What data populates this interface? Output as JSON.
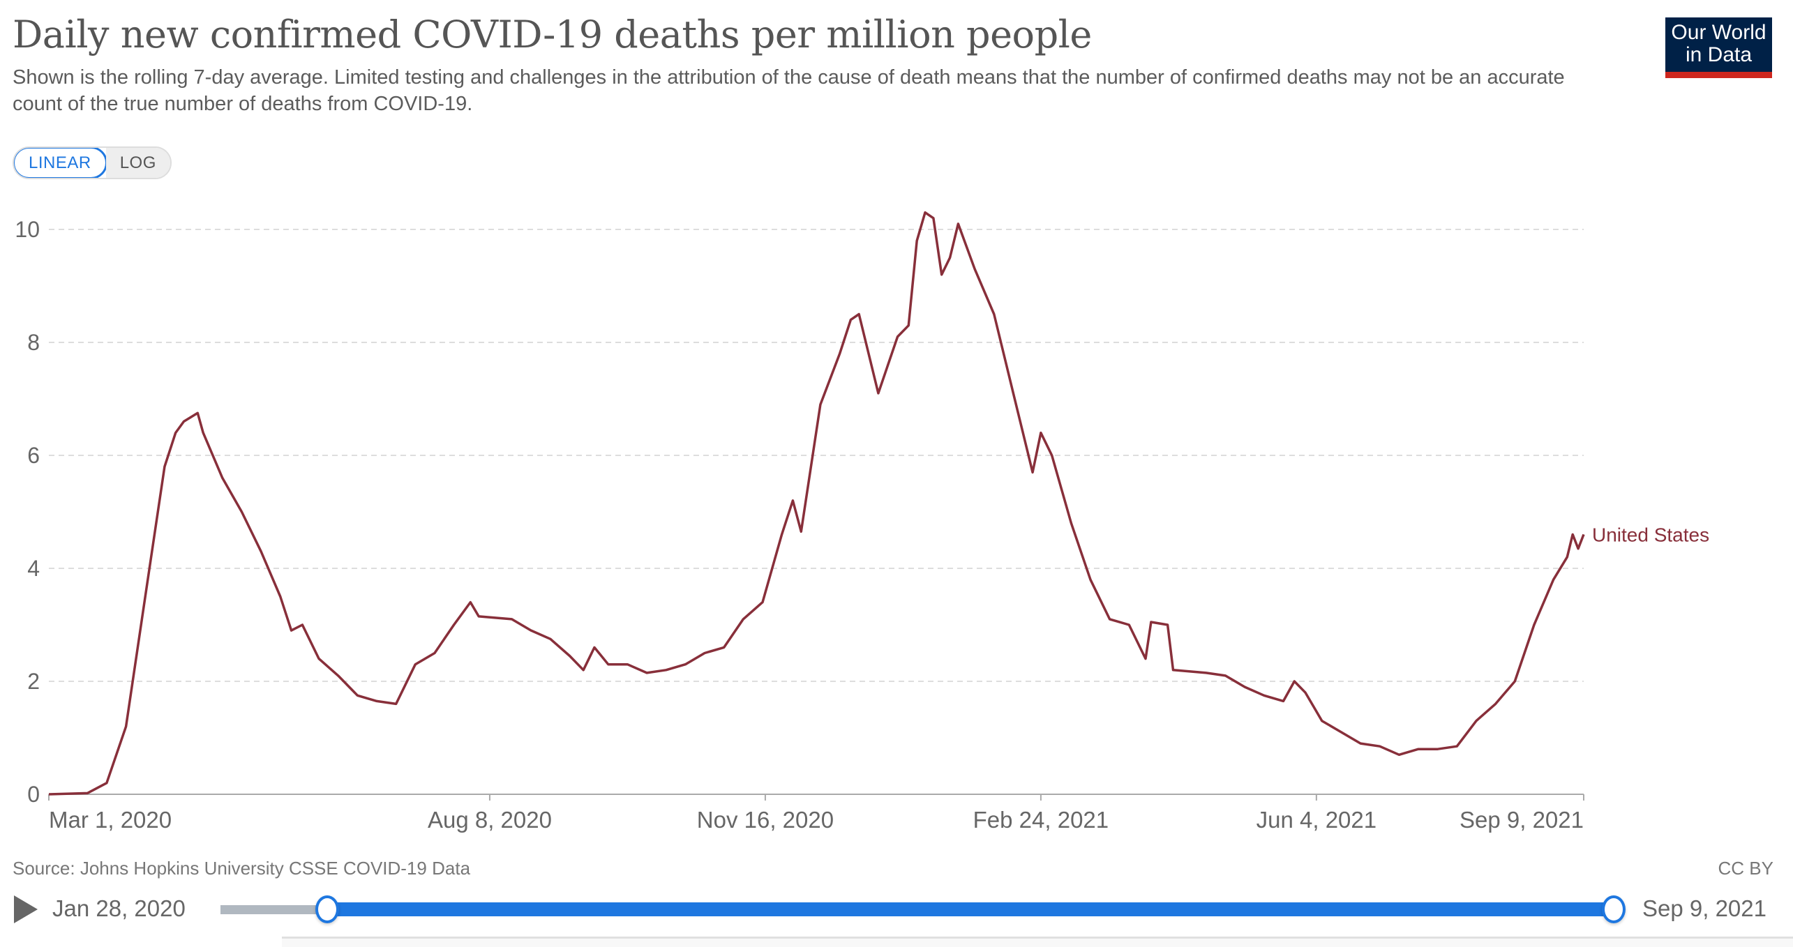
{
  "header": {
    "title": "Daily new confirmed COVID-19 deaths per million people",
    "subtitle": "Shown is the rolling 7-day average. Limited testing and challenges in the attribution of the cause of death means that the number of confirmed deaths may not be an accurate count of the true number of deaths from COVID-19.",
    "logo_line1": "Our World",
    "logo_line2": "in Data"
  },
  "scale_toggle": {
    "linear": "LINEAR",
    "log": "LOG",
    "selected": "LINEAR"
  },
  "footer": {
    "source": "Source: Johns Hopkins University CSSE COVID-19 Data",
    "license": "CC BY"
  },
  "timeline": {
    "play_icon": "play-icon",
    "start_label": "Jan 28, 2020",
    "end_label": "Sep 9, 2021",
    "range_start_fraction": 0.055,
    "range_end_fraction": 1.0
  },
  "colors": {
    "series": "#882f3a",
    "accent": "#1e77e0",
    "logo_bg": "#002147",
    "logo_bar": "#ce261e"
  },
  "chart_data": {
    "type": "line",
    "title": "Daily new confirmed COVID-19 deaths per million people",
    "xlabel": "",
    "ylabel": "",
    "xlim": [
      "2020-03-01",
      "2021-09-09"
    ],
    "ylim": [
      0,
      10
    ],
    "y_ticks": [
      "0",
      "2",
      "4",
      "6",
      "8",
      "10"
    ],
    "x_ticks": [
      {
        "date": "2020-03-01",
        "label": "Mar 1, 2020"
      },
      {
        "date": "2020-08-08",
        "label": "Aug 8, 2020"
      },
      {
        "date": "2020-11-16",
        "label": "Nov 16, 2020"
      },
      {
        "date": "2021-02-24",
        "label": "Feb 24, 2021"
      },
      {
        "date": "2021-06-04",
        "label": "Jun 4, 2021"
      },
      {
        "date": "2021-09-09",
        "label": "Sep 9, 2021"
      }
    ],
    "grid": "horizontal-dashed",
    "legend": "inline-end-label",
    "series": [
      {
        "name": "United States",
        "color": "#882f3a",
        "points": [
          [
            "2020-03-01",
            0
          ],
          [
            "2020-03-15",
            0.02
          ],
          [
            "2020-03-22",
            0.2
          ],
          [
            "2020-03-29",
            1.2
          ],
          [
            "2020-04-05",
            3.5
          ],
          [
            "2020-04-12",
            5.8
          ],
          [
            "2020-04-16",
            6.4
          ],
          [
            "2020-04-19",
            6.6
          ],
          [
            "2020-04-24",
            6.75
          ],
          [
            "2020-04-26",
            6.4
          ],
          [
            "2020-05-03",
            5.6
          ],
          [
            "2020-05-10",
            5.0
          ],
          [
            "2020-05-17",
            4.3
          ],
          [
            "2020-05-24",
            3.5
          ],
          [
            "2020-05-28",
            2.9
          ],
          [
            "2020-06-01",
            3.0
          ],
          [
            "2020-06-07",
            2.4
          ],
          [
            "2020-06-14",
            2.1
          ],
          [
            "2020-06-21",
            1.75
          ],
          [
            "2020-06-28",
            1.65
          ],
          [
            "2020-07-05",
            1.6
          ],
          [
            "2020-07-12",
            2.3
          ],
          [
            "2020-07-19",
            2.5
          ],
          [
            "2020-07-26",
            3.0
          ],
          [
            "2020-08-01",
            3.4
          ],
          [
            "2020-08-04",
            3.15
          ],
          [
            "2020-08-16",
            3.1
          ],
          [
            "2020-08-23",
            2.9
          ],
          [
            "2020-08-30",
            2.75
          ],
          [
            "2020-09-06",
            2.45
          ],
          [
            "2020-09-11",
            2.2
          ],
          [
            "2020-09-15",
            2.6
          ],
          [
            "2020-09-20",
            2.3
          ],
          [
            "2020-09-27",
            2.3
          ],
          [
            "2020-10-04",
            2.15
          ],
          [
            "2020-10-11",
            2.2
          ],
          [
            "2020-10-18",
            2.3
          ],
          [
            "2020-10-25",
            2.5
          ],
          [
            "2020-11-01",
            2.6
          ],
          [
            "2020-11-08",
            3.1
          ],
          [
            "2020-11-15",
            3.4
          ],
          [
            "2020-11-22",
            4.6
          ],
          [
            "2020-11-26",
            5.2
          ],
          [
            "2020-11-29",
            4.65
          ],
          [
            "2020-12-06",
            6.9
          ],
          [
            "2020-12-13",
            7.8
          ],
          [
            "2020-12-17",
            8.4
          ],
          [
            "2020-12-20",
            8.5
          ],
          [
            "2020-12-27",
            7.1
          ],
          [
            "2021-01-03",
            8.1
          ],
          [
            "2021-01-07",
            8.3
          ],
          [
            "2021-01-10",
            9.8
          ],
          [
            "2021-01-13",
            10.3
          ],
          [
            "2021-01-16",
            10.2
          ],
          [
            "2021-01-19",
            9.2
          ],
          [
            "2021-01-22",
            9.5
          ],
          [
            "2021-01-25",
            10.1
          ],
          [
            "2021-01-31",
            9.3
          ],
          [
            "2021-02-07",
            8.5
          ],
          [
            "2021-02-14",
            7.1
          ],
          [
            "2021-02-21",
            5.7
          ],
          [
            "2021-02-24",
            6.4
          ],
          [
            "2021-02-28",
            6.0
          ],
          [
            "2021-03-07",
            4.8
          ],
          [
            "2021-03-14",
            3.8
          ],
          [
            "2021-03-21",
            3.1
          ],
          [
            "2021-03-28",
            3.0
          ],
          [
            "2021-04-03",
            2.4
          ],
          [
            "2021-04-05",
            3.05
          ],
          [
            "2021-04-11",
            3.0
          ],
          [
            "2021-04-13",
            2.2
          ],
          [
            "2021-04-25",
            2.15
          ],
          [
            "2021-05-02",
            2.1
          ],
          [
            "2021-05-09",
            1.9
          ],
          [
            "2021-05-16",
            1.75
          ],
          [
            "2021-05-23",
            1.65
          ],
          [
            "2021-05-27",
            2.0
          ],
          [
            "2021-05-31",
            1.8
          ],
          [
            "2021-06-06",
            1.3
          ],
          [
            "2021-06-13",
            1.1
          ],
          [
            "2021-06-20",
            0.9
          ],
          [
            "2021-06-27",
            0.85
          ],
          [
            "2021-07-04",
            0.7
          ],
          [
            "2021-07-11",
            0.8
          ],
          [
            "2021-07-18",
            0.8
          ],
          [
            "2021-07-25",
            0.85
          ],
          [
            "2021-08-01",
            1.3
          ],
          [
            "2021-08-08",
            1.6
          ],
          [
            "2021-08-15",
            2.0
          ],
          [
            "2021-08-22",
            3.0
          ],
          [
            "2021-08-29",
            3.8
          ],
          [
            "2021-09-03",
            4.2
          ],
          [
            "2021-09-05",
            4.6
          ],
          [
            "2021-09-07",
            4.35
          ],
          [
            "2021-09-09",
            4.6
          ]
        ]
      }
    ]
  }
}
